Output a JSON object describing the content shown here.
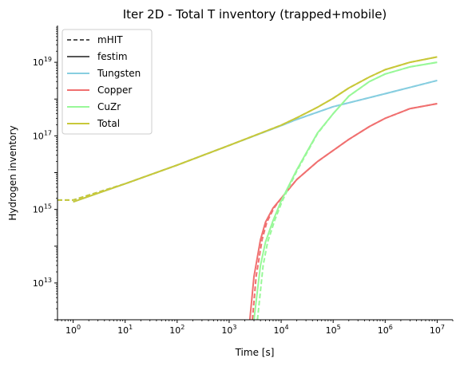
{
  "chart_data": {
    "type": "line",
    "title": "Iter 2D - Total T inventory (trapped+mobile)",
    "xlabel": "Time [s]",
    "ylabel": "Hydrogen inventory",
    "xscale": "log",
    "yscale": "log",
    "xlim": [
      0.5,
      20000000
    ],
    "ylim": [
      1000000000000.0,
      1e+20
    ],
    "x_ticks": [
      {
        "value": 1,
        "base": "10",
        "exp": "0"
      },
      {
        "value": 10,
        "base": "10",
        "exp": "1"
      },
      {
        "value": 100,
        "base": "10",
        "exp": "2"
      },
      {
        "value": 1000,
        "base": "10",
        "exp": "3"
      },
      {
        "value": 10000,
        "base": "10",
        "exp": "4"
      },
      {
        "value": 100000,
        "base": "10",
        "exp": "5"
      },
      {
        "value": 1000000,
        "base": "10",
        "exp": "6"
      },
      {
        "value": 10000000,
        "base": "10",
        "exp": "7"
      }
    ],
    "y_ticks": [
      {
        "value": 10000000000000.0,
        "base": "10",
        "exp": "13"
      },
      {
        "value": 1000000000000000.0,
        "base": "10",
        "exp": "15"
      },
      {
        "value": 1e+17,
        "base": "10",
        "exp": "17"
      },
      {
        "value": 1e+19,
        "base": "10",
        "exp": "19"
      }
    ],
    "grid": false,
    "legend_position": "top-left",
    "legend": [
      {
        "label": "mHIT",
        "color": "#555555",
        "dash": true
      },
      {
        "label": "festim",
        "color": "#555555",
        "dash": false
      },
      {
        "label": "Tungsten",
        "color": "#87cee0",
        "dash": false
      },
      {
        "label": "Copper",
        "color": "#f07070",
        "dash": false
      },
      {
        "label": "CuZr",
        "color": "#98f898",
        "dash": false
      },
      {
        "label": "Total",
        "color": "#c8c83a",
        "dash": false
      }
    ],
    "series": [
      {
        "name": "Tungsten",
        "source": "festim",
        "color": "#87cee0",
        "dash": false,
        "x": [
          1,
          10,
          100,
          1000,
          10000,
          20000,
          100000,
          1000000,
          10000000
        ],
        "y": [
          1600000000000000.0,
          5000000000000000.0,
          1.6e+16,
          5.5e+16,
          1.9e+17,
          2.8e+17,
          6.2e+17,
          1.4e+18,
          3.2e+18
        ]
      },
      {
        "name": "Tungsten",
        "source": "mHIT",
        "color": "#87cee0",
        "dash": true,
        "x": [
          0.5,
          1,
          10,
          100,
          1000,
          10000,
          20000,
          100000,
          1000000,
          10000000
        ],
        "y": [
          1800000000000000.0,
          1800000000000000.0,
          5000000000000000.0,
          1.6e+16,
          5.5e+16,
          1.9e+17,
          2.8e+17,
          6.2e+17,
          1.4e+18,
          3.2e+18
        ]
      },
      {
        "name": "Copper",
        "source": "festim",
        "color": "#f07070",
        "dash": false,
        "x": [
          2500,
          3000,
          4000,
          5000,
          7000,
          10000,
          20000,
          50000,
          100000,
          200000,
          500000,
          1000000,
          3000000,
          10000000
        ],
        "y": [
          1000000000000.0,
          15000000000000.0,
          150000000000000.0,
          450000000000000.0,
          1100000000000000.0,
          2000000000000000.0,
          6500000000000000.0,
          2e+16,
          4e+16,
          8e+16,
          1.8e+17,
          3e+17,
          5.5e+17,
          7.5e+17
        ]
      },
      {
        "name": "Copper",
        "source": "mHIT",
        "color": "#f07070",
        "dash": true,
        "x": [
          2800,
          3300,
          4300,
          5300,
          7300,
          10000,
          20000,
          50000,
          100000,
          200000,
          500000,
          1000000,
          3000000,
          10000000
        ],
        "y": [
          1000000000000.0,
          15000000000000.0,
          150000000000000.0,
          450000000000000.0,
          1100000000000000.0,
          2000000000000000.0,
          6500000000000000.0,
          2e+16,
          4e+16,
          8e+16,
          1.8e+17,
          3e+17,
          5.5e+17,
          7.5e+17
        ]
      },
      {
        "name": "CuZr",
        "source": "festim",
        "color": "#98f898",
        "dash": false,
        "x": [
          3000,
          4000,
          5000,
          7000,
          10000,
          20000,
          50000,
          100000,
          200000,
          500000,
          1000000,
          3000000,
          10000000
        ],
        "y": [
          1000000000000.0,
          30000000000000.0,
          130000000000000.0,
          500000000000000.0,
          1700000000000000.0,
          1.2e+16,
          1.2e+17,
          4e+17,
          1.2e+18,
          3e+18,
          4.8e+18,
          7.5e+18,
          1e+19
        ]
      },
      {
        "name": "CuZr",
        "source": "mHIT",
        "color": "#98f898",
        "dash": true,
        "x": [
          3500,
          4500,
          5500,
          7500,
          10500,
          20000,
          50000,
          100000,
          200000,
          500000,
          1000000,
          3000000,
          10000000
        ],
        "y": [
          1000000000000.0,
          30000000000000.0,
          130000000000000.0,
          500000000000000.0,
          1700000000000000.0,
          1.1e+16,
          1.15e+17,
          4e+17,
          1.2e+18,
          3e+18,
          4.8e+18,
          7.5e+18,
          1e+19
        ]
      },
      {
        "name": "Total",
        "source": "festim",
        "color": "#c8c83a",
        "dash": false,
        "x": [
          1,
          10,
          100,
          1000,
          10000,
          20000,
          50000,
          100000,
          200000,
          500000,
          1000000,
          3000000,
          10000000
        ],
        "y": [
          1600000000000000.0,
          5000000000000000.0,
          1.6e+16,
          5.5e+16,
          1.95e+17,
          3.1e+17,
          6e+17,
          1.05e+18,
          2e+18,
          4e+18,
          6.3e+18,
          1e+19,
          1.4e+19
        ]
      },
      {
        "name": "Total",
        "source": "mHIT",
        "color": "#c8c83a",
        "dash": true,
        "x": [
          0.5,
          1,
          10,
          100,
          1000,
          10000,
          20000,
          50000,
          100000,
          200000,
          500000,
          1000000,
          3000000,
          10000000
        ],
        "y": [
          1800000000000000.0,
          1800000000000000.0,
          5000000000000000.0,
          1.6e+16,
          5.5e+16,
          1.95e+17,
          3.1e+17,
          6e+17,
          1.05e+18,
          2e+18,
          4e+18,
          6.3e+18,
          1e+19,
          1.4e+19
        ]
      }
    ]
  }
}
